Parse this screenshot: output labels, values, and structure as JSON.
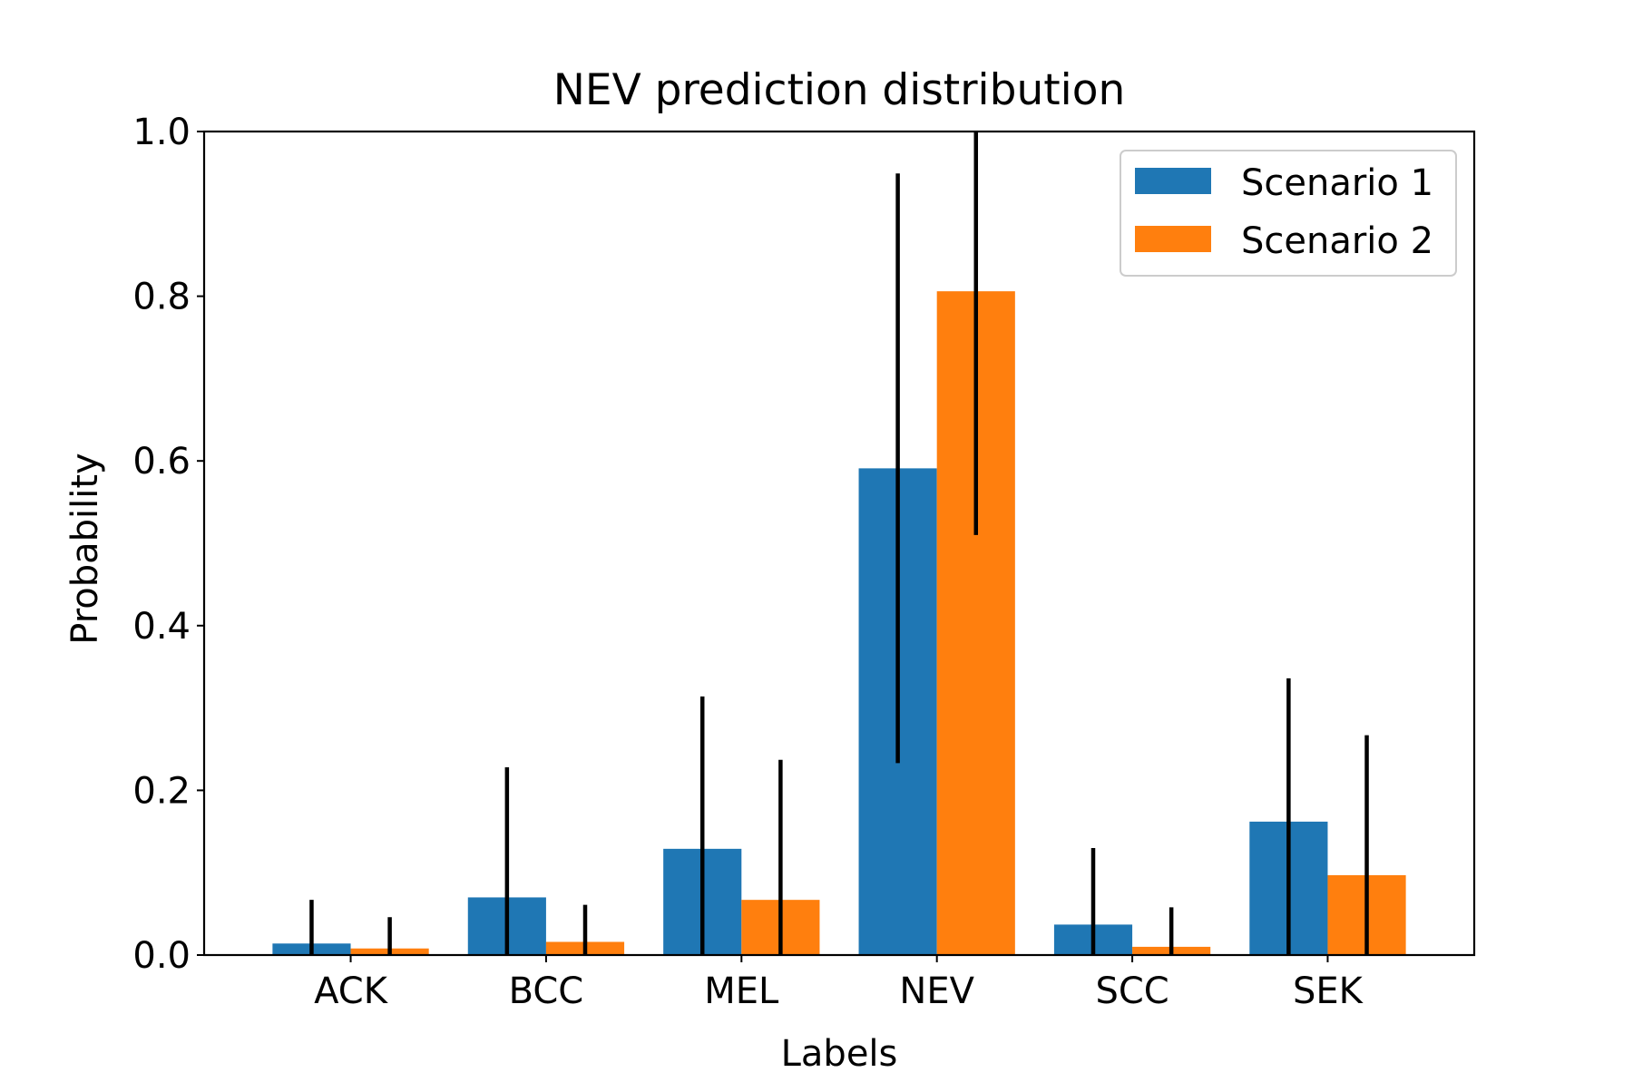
{
  "chart_data": {
    "type": "bar",
    "title": "NEV prediction distribution",
    "xlabel": "Labels",
    "ylabel": "Probability",
    "ylim": [
      0.0,
      1.0
    ],
    "yticks": [
      "0.0",
      "0.2",
      "0.4",
      "0.6",
      "0.8",
      "1.0"
    ],
    "categories": [
      "ACK",
      "BCC",
      "MEL",
      "NEV",
      "SCC",
      "SEK"
    ],
    "grid": false,
    "legend_position": "top-right",
    "series": [
      {
        "name": "Scenario 1",
        "color": "#1f77b4",
        "values": [
          0.014,
          0.07,
          0.129,
          0.591,
          0.037,
          0.162
        ],
        "error": [
          0.053,
          0.158,
          0.185,
          0.358,
          0.093,
          0.174
        ]
      },
      {
        "name": "Scenario 2",
        "color": "#ff7f0e",
        "values": [
          0.008,
          0.016,
          0.067,
          0.806,
          0.01,
          0.097
        ],
        "error": [
          0.038,
          0.045,
          0.17,
          0.296,
          0.048,
          0.17
        ]
      }
    ],
    "error_bar_color": "#000000"
  }
}
